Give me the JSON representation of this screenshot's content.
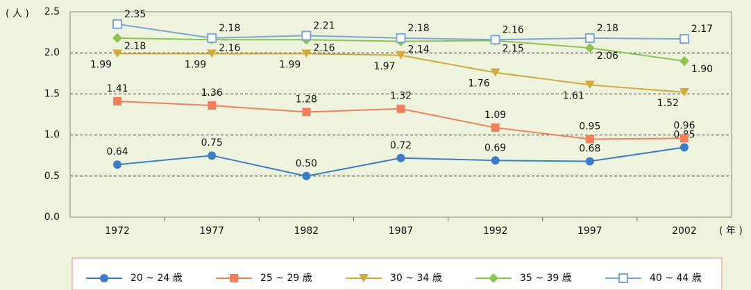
{
  "chart_data": {
    "type": "line",
    "y_label": "( 人 )",
    "x_label": "( 年 )",
    "categories": [
      "1972",
      "1977",
      "1982",
      "1987",
      "1992",
      "1997",
      "2002"
    ],
    "ylim": [
      0,
      2.5
    ],
    "yticks": [
      {
        "value": 0,
        "label": "0.0"
      },
      0.5,
      {
        "value": 1,
        "label": "1.0"
      },
      1.5,
      {
        "value": 2,
        "label": "2.0"
      },
      2.5
    ],
    "grid": true,
    "series": [
      {
        "name": "20 ~ 24 歳",
        "color": "#3b7dc8",
        "marker": "circle",
        "label_pos": "above",
        "values": [
          0.64,
          0.75,
          0.5,
          0.72,
          0.69,
          0.68,
          0.85
        ],
        "value_labels": [
          "0.64",
          "0.75",
          "0.50",
          "0.72",
          "0.69",
          "0.68",
          "0.85"
        ]
      },
      {
        "name": "25 ~ 29 歳",
        "color": "#f17f5b",
        "marker": "square",
        "label_pos": "above",
        "values": [
          1.41,
          1.36,
          1.28,
          1.32,
          1.09,
          0.95,
          0.96
        ],
        "value_labels": [
          "1.41",
          "1.36",
          "1.28",
          "1.32",
          "1.09",
          "0.95",
          "0.96"
        ]
      },
      {
        "name": "30 ~ 34 歳",
        "color": "#d2a93b",
        "marker": "triangle-down",
        "label_pos": "below-left",
        "values": [
          1.99,
          1.99,
          1.99,
          1.97,
          1.76,
          1.61,
          1.52
        ],
        "value_labels": [
          "1.99",
          "1.99",
          "1.99",
          "1.97",
          "1.76",
          "1.61",
          "1.52"
        ]
      },
      {
        "name": "35 ~ 39 歳",
        "color": "#8dc253",
        "marker": "diamond",
        "label_pos": "below-right",
        "values": [
          2.18,
          2.16,
          2.16,
          2.14,
          2.15,
          2.06,
          1.9
        ],
        "value_labels": [
          "2.18",
          "2.16",
          "2.16",
          "2.14",
          "2.15",
          "2.06",
          "1.90"
        ]
      },
      {
        "name": "40 ~ 44 歳",
        "color": "#7ba5d8",
        "marker": "square-open",
        "label_pos": "above-right",
        "values": [
          2.35,
          2.18,
          2.21,
          2.18,
          2.16,
          2.18,
          2.17
        ],
        "value_labels": [
          "2.35",
          "2.18",
          "2.21",
          "2.18",
          "2.16",
          "2.18",
          "2.17"
        ]
      }
    ]
  }
}
